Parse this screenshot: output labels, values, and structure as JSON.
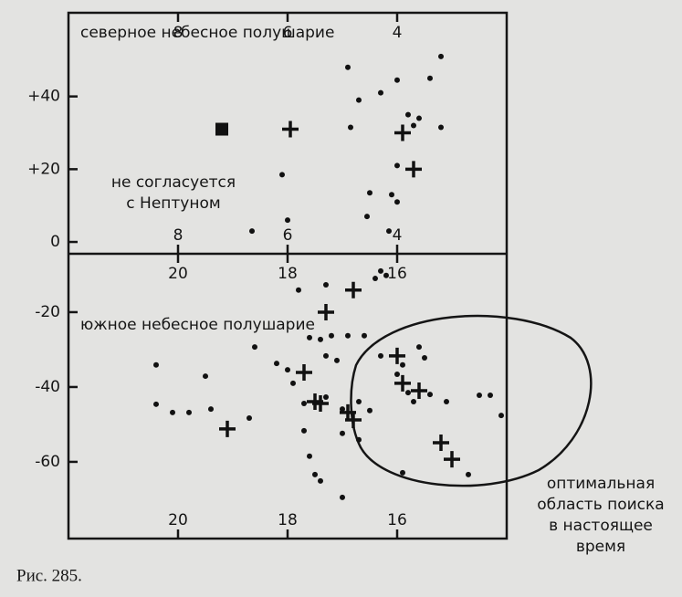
{
  "chart_data": [
    {
      "type": "scatter",
      "label": "северное небесное полушарие",
      "note": [
        "не согласуется",
        "с Нептуном"
      ],
      "xlim": [
        10,
        2
      ],
      "ylim": [
        -3.25,
        63
      ],
      "xticks": [
        8,
        6,
        4
      ],
      "yticks": [
        {
          "value": 40,
          "label": "+40"
        },
        {
          "value": 20,
          "label": "+20"
        },
        0
      ],
      "series": [
        {
          "marker": "dot",
          "color": "#111111",
          "x": [
            4.9,
            3.2,
            3.4,
            4.0,
            4.7,
            4.3,
            3.8,
            3.6,
            3.7,
            3.2,
            4.85,
            6.1,
            4.0,
            4.1,
            4.5,
            4.0,
            6.0,
            4.55,
            6.65,
            4.15
          ],
          "y": [
            48,
            51,
            45,
            44.5,
            39,
            41,
            35,
            34,
            32,
            31.5,
            31.5,
            18.5,
            21,
            13,
            13.5,
            11,
            6,
            7,
            3,
            3
          ]
        },
        {
          "marker": "plus",
          "color": "#111111",
          "x": [
            5.95,
            3.9,
            3.7
          ],
          "y": [
            31,
            30,
            20
          ]
        },
        {
          "marker": "square",
          "color": "#111111",
          "x": [
            7.2
          ],
          "y": [
            31
          ]
        }
      ]
    },
    {
      "type": "scatter",
      "label": "южное небесное полушарие",
      "note": [
        "оптимальная",
        "область поиска",
        "в настоящее",
        "время"
      ],
      "xlim": [
        22,
        14
      ],
      "ylim": [
        -80.5,
        -4.4
      ],
      "xticks": [
        20,
        18,
        16
      ],
      "yticks": [
        -20,
        -40,
        -60
      ],
      "series": [
        {
          "marker": "dot",
          "color": "#111111",
          "x": [
            16.3,
            16.2,
            16.4,
            17.8,
            17.3,
            18.6,
            20.4,
            19.5,
            20.4,
            20.1,
            19.8,
            19.4,
            18.7,
            18.2,
            18.0,
            17.9,
            17.6,
            17.4,
            17.2,
            16.9,
            16.6,
            17.3,
            17.1,
            17.7,
            17.3,
            17.0,
            16.7,
            16.5,
            16.3,
            15.6,
            15.5,
            15.9,
            16.0,
            15.8,
            15.4,
            15.1,
            14.5,
            14.3,
            14.1,
            17.7,
            17.6,
            17.5,
            17.4,
            17.0,
            17.0,
            16.7,
            15.9,
            14.7,
            15.7
          ],
          "y": [
            -9,
            -10.2,
            -11,
            -14.1,
            -12.7,
            -29.3,
            -34.1,
            -37.1,
            -44.6,
            -46.8,
            -46.8,
            -45.9,
            -48.3,
            -33.7,
            -35.4,
            -39,
            -26.8,
            -27.3,
            -26.3,
            -26.3,
            -26.3,
            -31.7,
            -32.9,
            -44.4,
            -42.7,
            -45.9,
            -43.9,
            -46.3,
            -31.7,
            -29.3,
            -32.2,
            -34.1,
            -36.6,
            -41.5,
            -42,
            -43.9,
            -42.2,
            -42.2,
            -47.6,
            -51.7,
            -58.5,
            -63.4,
            -65.1,
            -69.5,
            -52.4,
            -54.1,
            -62.9,
            -63.4,
            -43.9
          ]
        },
        {
          "marker": "plus",
          "color": "#111111",
          "x": [
            17.3,
            16.8,
            17.7,
            17.5,
            17.4,
            16.9,
            16.8,
            16.0,
            15.9,
            15.6,
            15.2,
            15.0,
            19.1
          ],
          "y": [
            -20,
            -14.1,
            -36.1,
            -43.9,
            -44.4,
            -46.8,
            -48.8,
            -31.7,
            -39,
            -41,
            -54.9,
            -59.3,
            -51.2
          ]
        }
      ]
    }
  ],
  "caption": "Рис. 285."
}
